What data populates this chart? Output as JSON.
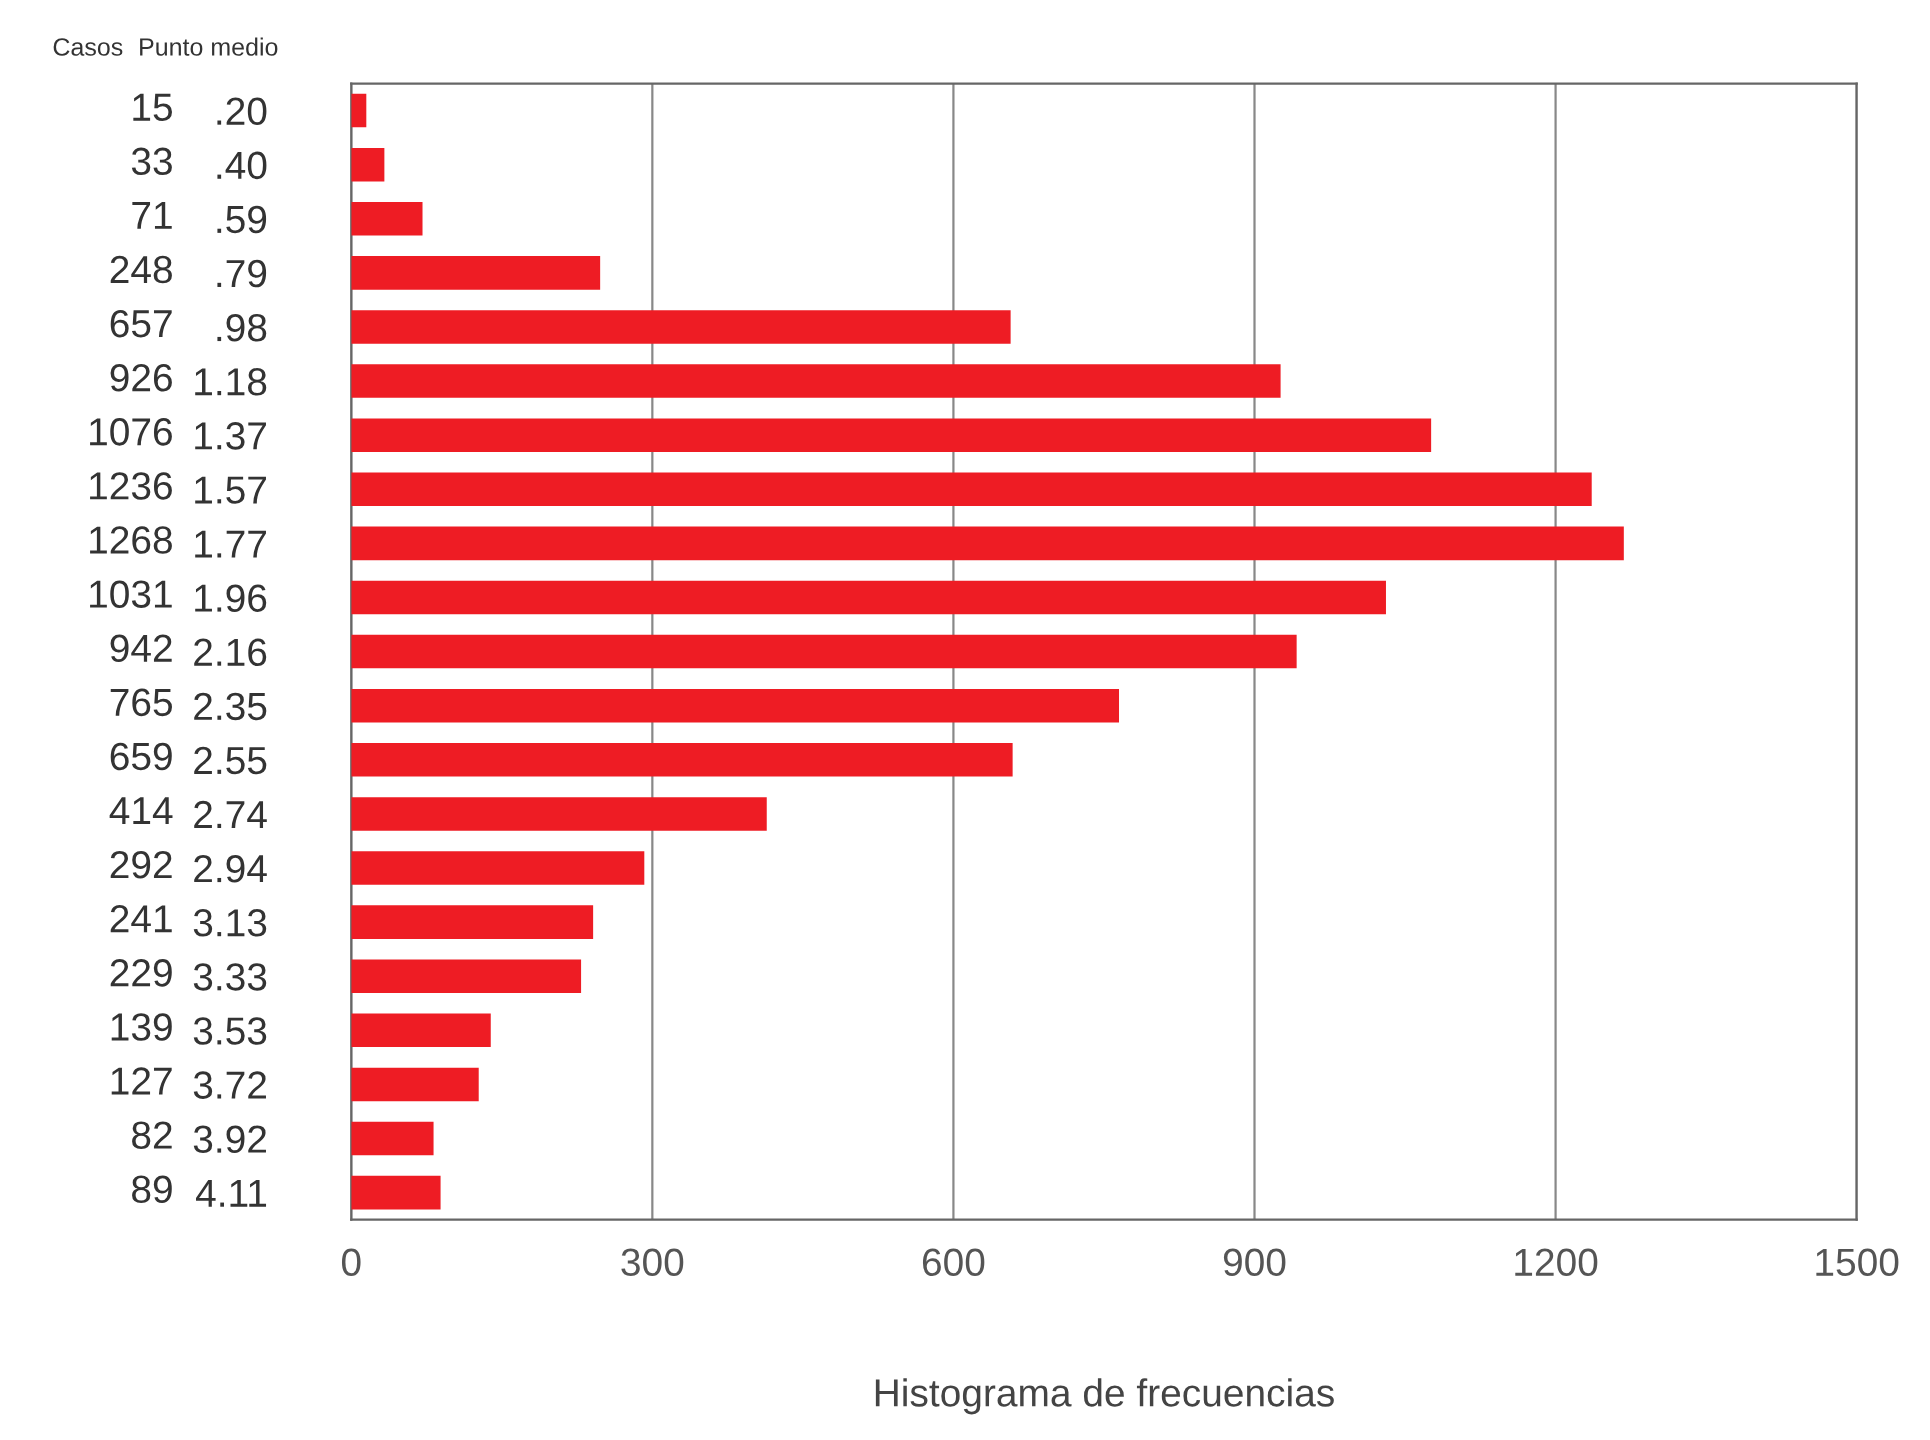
{
  "chart_data": {
    "type": "bar",
    "orientation": "horizontal",
    "xlabel": "Histograma de frecuencias",
    "ylabel": "Punto medio",
    "annotations": [
      "Casos"
    ],
    "categories": [
      ".20",
      ".40",
      ".59",
      ".79",
      ".98",
      "1.18",
      "1.37",
      "1.57",
      "1.77",
      "1.96",
      "2.16",
      "2.35",
      "2.55",
      "2.74",
      "2.94",
      "3.13",
      "3.33",
      "3.53",
      "3.72",
      "3.92",
      "4.11"
    ],
    "values": [
      15,
      33,
      71,
      248,
      657,
      926,
      1076,
      1236,
      1268,
      1031,
      942,
      765,
      659,
      414,
      292,
      241,
      229,
      139,
      127,
      82,
      89
    ],
    "color": "#ee1c24",
    "data_labels": true,
    "xlim": [
      0,
      1500
    ],
    "xticks": [
      0,
      300,
      600,
      900,
      1200,
      1500
    ],
    "grid": "x"
  }
}
